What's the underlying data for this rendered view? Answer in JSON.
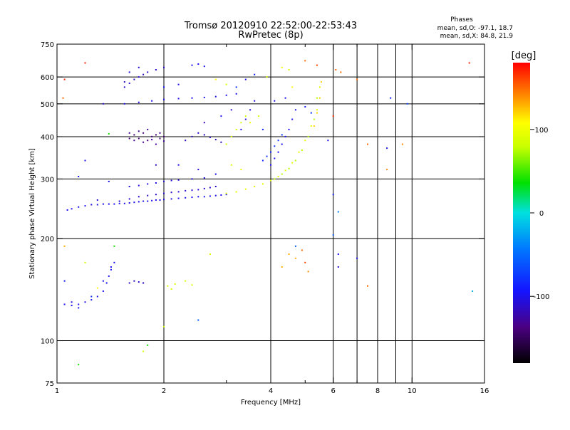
{
  "chart_data": {
    "type": "scatter",
    "title": "Tromsø 20120910 22:52:00-22:53:43",
    "subtitle": "RwPretec (8p)",
    "xlabel": "Frequency [MHz]",
    "ylabel": "Stationary phase Virtual Height [km]",
    "x_scale": "log",
    "y_scale": "log",
    "xlim": [
      1,
      16
    ],
    "ylim": [
      75,
      750
    ],
    "x_ticks": [
      1,
      2,
      4,
      6,
      8,
      10,
      16
    ],
    "x_tick_labels": [
      "1",
      "2",
      "4",
      "6",
      "8",
      "10",
      "16"
    ],
    "x_gridlines": [
      2,
      4,
      6,
      7,
      8,
      9,
      10
    ],
    "x_minor_ticks": [
      3,
      5,
      7,
      9
    ],
    "y_ticks": [
      75,
      100,
      200,
      300,
      400,
      500,
      600,
      750
    ],
    "y_tick_labels": [
      "75",
      "100",
      "200",
      "300",
      "400",
      "500",
      "600",
      "750"
    ],
    "y_gridlines": [
      100,
      200,
      300,
      400,
      500,
      600
    ],
    "grid": true,
    "stats": {
      "heading": "Phases",
      "line_o": "mean, sd,O: -97.1, 18.7",
      "line_x": "mean, sd,X:  84.8, 21.9"
    },
    "colorbar": {
      "label": "[deg]",
      "range": [
        -180,
        180
      ],
      "ticks": [
        100,
        0,
        -100
      ],
      "tick_labels": [
        "100",
        "0",
        "-100"
      ]
    },
    "traces": [
      {
        "x": [
          1.07,
          1.1,
          1.15,
          1.2,
          1.25,
          1.3,
          1.35,
          1.4,
          1.45,
          1.5,
          1.55,
          1.6,
          1.65,
          1.7,
          1.75,
          1.8,
          1.85,
          1.9,
          1.95,
          2.0,
          2.1,
          2.2,
          2.3,
          2.4,
          2.5,
          2.6,
          2.7,
          2.8,
          2.9,
          3.0
        ],
        "y": [
          243,
          245,
          248,
          250,
          252,
          252,
          253,
          253,
          253,
          254,
          254,
          255,
          256,
          257,
          258,
          258,
          259,
          260,
          260,
          261,
          262,
          263,
          264,
          265,
          266,
          266,
          267,
          268,
          269,
          270
        ],
        "phase": -100
      },
      {
        "x": [
          1.5,
          1.6,
          1.7,
          1.8,
          1.9,
          2.0,
          2.1,
          2.2,
          2.3,
          2.4,
          2.5,
          2.6,
          2.7,
          2.8
        ],
        "y": [
          258,
          262,
          266,
          268,
          270,
          272,
          274,
          275,
          277,
          278,
          279,
          281,
          283,
          285
        ],
        "phase": -110
      },
      {
        "x": [
          1.6,
          1.7,
          1.8,
          1.9,
          2.0,
          2.1,
          2.2,
          2.4,
          2.6
        ],
        "y": [
          285,
          287,
          290,
          292,
          295,
          297,
          298,
          300,
          302
        ],
        "phase": -105
      },
      {
        "x": [
          3.0,
          3.2,
          3.4,
          3.6,
          3.8,
          4.0,
          4.2,
          4.4,
          4.6,
          4.8,
          5.0,
          5.2,
          5.4,
          5.5
        ],
        "y": [
          272,
          275,
          280,
          285,
          290,
          297,
          305,
          318,
          335,
          360,
          390,
          430,
          480,
          560
        ],
        "phase": 95
      },
      {
        "x": [
          4.1,
          4.3,
          4.5,
          4.7,
          4.9,
          5.1,
          5.3,
          5.4
        ],
        "y": [
          300,
          310,
          322,
          340,
          365,
          400,
          450,
          520
        ],
        "phase": 75
      },
      {
        "x": [
          4.0,
          4.1,
          4.2,
          4.3,
          4.4,
          4.5,
          4.6,
          4.7
        ],
        "y": [
          330,
          345,
          360,
          380,
          400,
          420,
          450,
          480
        ],
        "phase": -100
      },
      {
        "x": [
          3.8,
          3.9,
          4.0,
          4.1,
          4.2,
          4.3
        ],
        "y": [
          340,
          350,
          360,
          375,
          390,
          405
        ],
        "phase": -80
      },
      {
        "x": [
          1.6,
          1.65,
          1.7,
          1.75,
          1.8,
          1.85,
          1.9,
          1.95,
          2.0
        ],
        "y": [
          395,
          405,
          395,
          410,
          390,
          400,
          405,
          395,
          400
        ],
        "phase": -140
      },
      {
        "x": [
          1.6,
          1.65,
          1.7,
          1.75,
          1.8,
          1.85,
          1.9,
          1.95,
          2.0
        ],
        "y": [
          410,
          390,
          415,
          385,
          420,
          392,
          380,
          410,
          388
        ],
        "phase": -130
      },
      {
        "x": [
          2.3,
          2.4,
          2.5,
          2.6,
          2.7,
          2.8,
          2.9
        ],
        "y": [
          390,
          400,
          410,
          405,
          398,
          392,
          385
        ],
        "phase": -115
      },
      {
        "x": [
          1.55,
          1.7,
          1.85,
          2.0,
          2.2,
          2.4,
          2.6,
          2.8,
          3.0,
          3.2
        ],
        "y": [
          500,
          505,
          510,
          515,
          518,
          520,
          522,
          525,
          530,
          535
        ],
        "phase": -100
      },
      {
        "x": [
          1.55,
          1.6,
          1.65,
          1.7,
          1.75,
          1.8,
          1.9,
          2.0
        ],
        "y": [
          560,
          575,
          590,
          600,
          610,
          620,
          630,
          640
        ],
        "phase": -110
      },
      {
        "x": [
          3.3,
          3.4,
          3.5,
          3.6
        ],
        "y": [
          420,
          450,
          480,
          510
        ],
        "phase": -105
      },
      {
        "x": [
          3.0,
          3.1,
          3.2,
          3.3,
          3.4
        ],
        "y": [
          380,
          400,
          420,
          440,
          460
        ],
        "phase": 85
      },
      {
        "x": [
          5.3,
          5.4,
          5.5,
          5.55
        ],
        "y": [
          430,
          470,
          520,
          580
        ],
        "phase": 120
      },
      {
        "x": [
          1.05,
          1.1,
          1.15,
          1.2,
          1.25,
          1.3
        ],
        "y": [
          128,
          127,
          128,
          130,
          132,
          135
        ],
        "phase": -100
      },
      {
        "x": [
          1.35,
          1.38,
          1.4,
          1.42,
          1.45
        ],
        "y": [
          140,
          148,
          155,
          162,
          170
        ],
        "phase": -100
      },
      {
        "x": [
          1.6,
          1.65,
          1.7,
          1.75
        ],
        "y": [
          148,
          150,
          149,
          148
        ],
        "phase": -115
      },
      {
        "x": [
          2.05,
          2.1,
          2.15,
          2.3,
          2.4
        ],
        "y": [
          145,
          142,
          147,
          150,
          146
        ],
        "phase": 90
      },
      {
        "x": [
          2.4,
          2.5,
          2.6
        ],
        "y": [
          650,
          655,
          645
        ],
        "phase": -100
      }
    ],
    "points": [
      {
        "x": 1.2,
        "y": 660,
        "phase": 170
      },
      {
        "x": 1.05,
        "y": 590,
        "phase": 170
      },
      {
        "x": 1.04,
        "y": 520,
        "phase": 150
      },
      {
        "x": 1.55,
        "y": 580,
        "phase": -110
      },
      {
        "x": 1.6,
        "y": 620,
        "phase": -100
      },
      {
        "x": 1.7,
        "y": 640,
        "phase": -105
      },
      {
        "x": 1.35,
        "y": 500,
        "phase": -110
      },
      {
        "x": 1.4,
        "y": 408,
        "phase": 40
      },
      {
        "x": 1.2,
        "y": 340,
        "phase": -100
      },
      {
        "x": 1.15,
        "y": 305,
        "phase": -100
      },
      {
        "x": 1.4,
        "y": 295,
        "phase": -100
      },
      {
        "x": 1.3,
        "y": 260,
        "phase": -110
      },
      {
        "x": 1.05,
        "y": 190,
        "phase": 130
      },
      {
        "x": 1.45,
        "y": 190,
        "phase": 40
      },
      {
        "x": 1.2,
        "y": 170,
        "phase": 80
      },
      {
        "x": 1.05,
        "y": 150,
        "phase": -90
      },
      {
        "x": 1.1,
        "y": 130,
        "phase": -100
      },
      {
        "x": 1.15,
        "y": 125,
        "phase": -100
      },
      {
        "x": 1.25,
        "y": 135,
        "phase": -80
      },
      {
        "x": 1.35,
        "y": 150,
        "phase": -100
      },
      {
        "x": 1.42,
        "y": 165,
        "phase": -100
      },
      {
        "x": 1.3,
        "y": 143,
        "phase": 110
      },
      {
        "x": 1.75,
        "y": 148,
        "phase": -110
      },
      {
        "x": 2.8,
        "y": 590,
        "phase": 110
      },
      {
        "x": 3.0,
        "y": 570,
        "phase": 90
      },
      {
        "x": 3.2,
        "y": 560,
        "phase": -80
      },
      {
        "x": 3.4,
        "y": 590,
        "phase": -100
      },
      {
        "x": 3.6,
        "y": 610,
        "phase": -90
      },
      {
        "x": 3.9,
        "y": 600,
        "phase": 90
      },
      {
        "x": 4.3,
        "y": 640,
        "phase": 100
      },
      {
        "x": 4.5,
        "y": 630,
        "phase": 90
      },
      {
        "x": 5.0,
        "y": 670,
        "phase": 150
      },
      {
        "x": 5.4,
        "y": 650,
        "phase": 160
      },
      {
        "x": 6.1,
        "y": 630,
        "phase": 150
      },
      {
        "x": 7.0,
        "y": 590,
        "phase": 150
      },
      {
        "x": 4.6,
        "y": 560,
        "phase": 110
      },
      {
        "x": 4.4,
        "y": 520,
        "phase": -100
      },
      {
        "x": 4.1,
        "y": 510,
        "phase": -100
      },
      {
        "x": 5.0,
        "y": 490,
        "phase": -90
      },
      {
        "x": 5.2,
        "y": 470,
        "phase": -80
      },
      {
        "x": 6.0,
        "y": 460,
        "phase": 170
      },
      {
        "x": 5.8,
        "y": 390,
        "phase": -100
      },
      {
        "x": 7.5,
        "y": 380,
        "phase": 150
      },
      {
        "x": 8.5,
        "y": 370,
        "phase": -100
      },
      {
        "x": 9.4,
        "y": 380,
        "phase": 140
      },
      {
        "x": 8.7,
        "y": 520,
        "phase": -90
      },
      {
        "x": 9.7,
        "y": 500,
        "phase": -70
      },
      {
        "x": 8.5,
        "y": 320,
        "phase": 140
      },
      {
        "x": 6.0,
        "y": 270,
        "phase": -90
      },
      {
        "x": 6.2,
        "y": 240,
        "phase": -40
      },
      {
        "x": 6.0,
        "y": 205,
        "phase": -60
      },
      {
        "x": 6.2,
        "y": 180,
        "phase": -100
      },
      {
        "x": 6.2,
        "y": 165,
        "phase": -110
      },
      {
        "x": 7.0,
        "y": 175,
        "phase": -100
      },
      {
        "x": 7.5,
        "y": 145,
        "phase": 150
      },
      {
        "x": 4.5,
        "y": 180,
        "phase": 130
      },
      {
        "x": 4.7,
        "y": 175,
        "phase": 130
      },
      {
        "x": 4.9,
        "y": 185,
        "phase": 150
      },
      {
        "x": 5.0,
        "y": 170,
        "phase": 160
      },
      {
        "x": 4.3,
        "y": 165,
        "phase": 130
      },
      {
        "x": 4.7,
        "y": 190,
        "phase": -60
      },
      {
        "x": 5.1,
        "y": 160,
        "phase": 140
      },
      {
        "x": 2.5,
        "y": 115,
        "phase": -60
      },
      {
        "x": 2.0,
        "y": 110,
        "phase": 80
      },
      {
        "x": 1.8,
        "y": 97,
        "phase": 40
      },
      {
        "x": 1.75,
        "y": 93,
        "phase": 80
      },
      {
        "x": 1.15,
        "y": 85,
        "phase": 40
      },
      {
        "x": 2.7,
        "y": 180,
        "phase": 90
      },
      {
        "x": 14.5,
        "y": 660,
        "phase": 170
      },
      {
        "x": 14.8,
        "y": 140,
        "phase": -20
      },
      {
        "x": 6.3,
        "y": 620,
        "phase": 150
      },
      {
        "x": 2.2,
        "y": 330,
        "phase": -100
      },
      {
        "x": 2.5,
        "y": 320,
        "phase": -110
      },
      {
        "x": 2.8,
        "y": 310,
        "phase": -100
      },
      {
        "x": 3.1,
        "y": 330,
        "phase": 90
      },
      {
        "x": 3.3,
        "y": 320,
        "phase": 100
      },
      {
        "x": 1.9,
        "y": 330,
        "phase": -110
      },
      {
        "x": 2.0,
        "y": 560,
        "phase": -90
      },
      {
        "x": 2.2,
        "y": 570,
        "phase": -100
      },
      {
        "x": 2.6,
        "y": 440,
        "phase": -120
      },
      {
        "x": 2.9,
        "y": 460,
        "phase": -100
      },
      {
        "x": 3.1,
        "y": 480,
        "phase": -110
      },
      {
        "x": 3.7,
        "y": 460,
        "phase": 80
      },
      {
        "x": 3.5,
        "y": 440,
        "phase": 100
      },
      {
        "x": 3.8,
        "y": 420,
        "phase": -90
      }
    ]
  }
}
